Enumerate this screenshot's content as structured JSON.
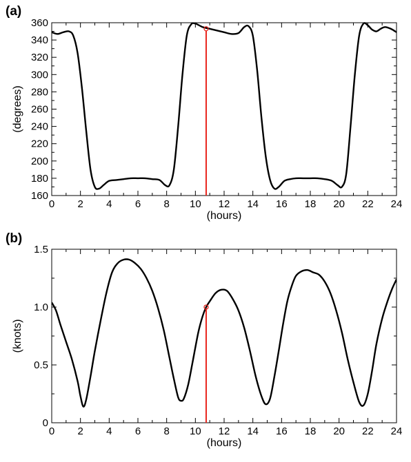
{
  "chart_data": [
    {
      "type": "line",
      "panel_label": "(a)",
      "xlabel": "(hours)",
      "ylabel": "(degrees)",
      "xlim": [
        0,
        24
      ],
      "ylim": [
        160,
        360
      ],
      "xticks": [
        0,
        2,
        4,
        6,
        8,
        10,
        12,
        14,
        16,
        18,
        20,
        22,
        24
      ],
      "yticks": [
        160,
        180,
        200,
        220,
        240,
        260,
        280,
        300,
        320,
        340,
        360
      ],
      "grid": false,
      "legend": "none",
      "series_color": "#000000",
      "marker_color": "#e8241c",
      "marker": {
        "x": 10.75,
        "y": 353
      },
      "x": [
        0,
        0.4,
        0.8,
        1.2,
        1.5,
        1.8,
        2.1,
        2.4,
        2.7,
        3.0,
        3.3,
        3.6,
        4.0,
        4.5,
        5.0,
        5.5,
        6.0,
        6.5,
        7.0,
        7.5,
        7.9,
        8.2,
        8.5,
        8.8,
        9.1,
        9.4,
        9.7,
        10.0,
        10.5,
        11.0,
        11.5,
        12.0,
        12.5,
        13.0,
        13.4,
        13.7,
        14.0,
        14.3,
        14.6,
        14.9,
        15.2,
        15.5,
        15.8,
        16.2,
        16.6,
        17.0,
        17.5,
        18.0,
        18.5,
        19.0,
        19.5,
        19.9,
        20.2,
        20.5,
        20.8,
        21.1,
        21.4,
        21.7,
        22.0,
        22.3,
        22.6,
        22.9,
        23.2,
        23.6,
        24.0
      ],
      "y": [
        349,
        347,
        349,
        350,
        345,
        325,
        285,
        235,
        190,
        170,
        168,
        172,
        177,
        178,
        179,
        180,
        180,
        180,
        179,
        178,
        172,
        172,
        190,
        240,
        300,
        345,
        358,
        359,
        355,
        353,
        351,
        349,
        347,
        348,
        355,
        356,
        345,
        305,
        250,
        205,
        178,
        168,
        170,
        177,
        179,
        180,
        180,
        180,
        180,
        179,
        177,
        172,
        170,
        185,
        240,
        300,
        345,
        359,
        357,
        352,
        350,
        353,
        355,
        353,
        349
      ]
    },
    {
      "type": "line",
      "panel_label": "(b)",
      "xlabel": "(hours)",
      "ylabel": "(knots)",
      "xlim": [
        0,
        24
      ],
      "ylim": [
        0,
        1.5
      ],
      "xticks": [
        0,
        2,
        4,
        6,
        8,
        10,
        12,
        14,
        16,
        18,
        20,
        22,
        24
      ],
      "yticks": [
        0,
        0.5,
        1.0,
        1.5
      ],
      "ytick_labels": [
        "0",
        "0.5",
        "1.0",
        "1.5"
      ],
      "grid": false,
      "legend": "none",
      "series_color": "#000000",
      "marker_color": "#e8241c",
      "marker": {
        "x": 10.75,
        "y": 1.0
      },
      "x": [
        0,
        0.3,
        0.6,
        1.0,
        1.4,
        1.8,
        2.0,
        2.2,
        2.4,
        2.7,
        3.0,
        3.4,
        3.8,
        4.2,
        4.6,
        5.0,
        5.4,
        5.8,
        6.2,
        6.6,
        7.0,
        7.4,
        7.8,
        8.2,
        8.5,
        8.8,
        9.0,
        9.2,
        9.5,
        9.8,
        10.2,
        10.5,
        10.75,
        11.0,
        11.4,
        11.8,
        12.2,
        12.6,
        13.0,
        13.4,
        13.8,
        14.2,
        14.6,
        14.9,
        15.2,
        15.5,
        15.8,
        16.1,
        16.4,
        16.7,
        17.0,
        17.4,
        17.8,
        18.2,
        18.6,
        19.0,
        19.4,
        19.8,
        20.2,
        20.6,
        21.0,
        21.4,
        21.7,
        22.0,
        22.3,
        22.6,
        23.0,
        23.4,
        23.7,
        24.0
      ],
      "y": [
        1.04,
        0.97,
        0.85,
        0.7,
        0.55,
        0.36,
        0.23,
        0.14,
        0.2,
        0.4,
        0.62,
        0.88,
        1.12,
        1.3,
        1.38,
        1.41,
        1.41,
        1.38,
        1.33,
        1.25,
        1.14,
        0.99,
        0.8,
        0.56,
        0.38,
        0.22,
        0.19,
        0.21,
        0.33,
        0.52,
        0.78,
        0.92,
        1.0,
        1.05,
        1.12,
        1.15,
        1.14,
        1.07,
        0.97,
        0.82,
        0.62,
        0.4,
        0.23,
        0.16,
        0.21,
        0.4,
        0.62,
        0.85,
        1.05,
        1.18,
        1.27,
        1.31,
        1.32,
        1.3,
        1.28,
        1.22,
        1.12,
        0.97,
        0.78,
        0.55,
        0.35,
        0.18,
        0.15,
        0.25,
        0.45,
        0.68,
        0.9,
        1.06,
        1.16,
        1.24
      ]
    }
  ]
}
